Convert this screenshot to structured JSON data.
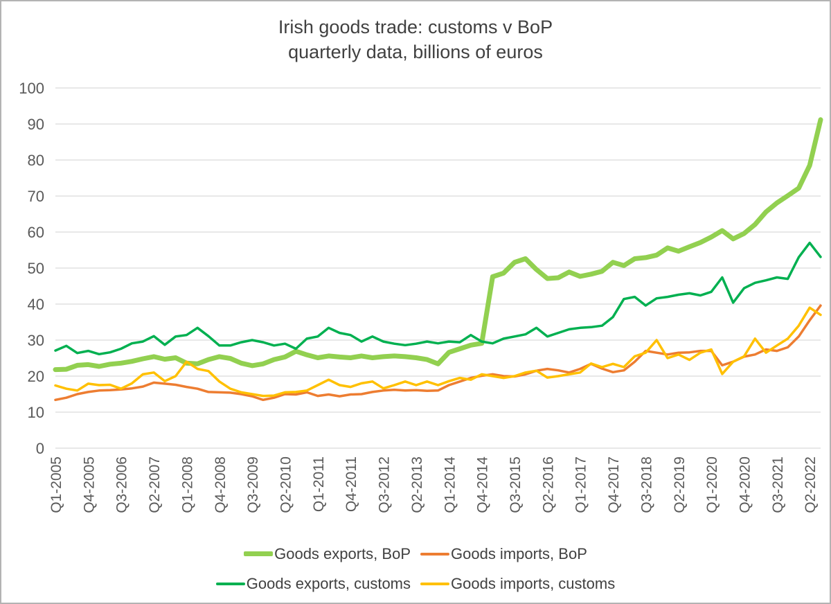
{
  "colors": {
    "axis_text": "#595959",
    "title_text": "#404040",
    "gridline": "#d9d9d9",
    "frame_border": "#b3b3b3"
  },
  "chart_data": {
    "type": "line",
    "title": "Irish goods trade: customs v BoP",
    "subtitle": "quarterly data, billions of euros",
    "ylabel": "",
    "xlabel": "",
    "ylim": [
      0,
      100
    ],
    "ytick_step": 10,
    "x_label_every": 3,
    "grid": true,
    "legend_position": "bottom",
    "categories": [
      "Q1-2005",
      "Q2-2005",
      "Q3-2005",
      "Q4-2005",
      "Q1-2006",
      "Q2-2006",
      "Q3-2006",
      "Q4-2006",
      "Q1-2007",
      "Q2-2007",
      "Q3-2007",
      "Q4-2007",
      "Q1-2008",
      "Q2-2008",
      "Q3-2008",
      "Q4-2008",
      "Q1-2009",
      "Q2-2009",
      "Q3-2009",
      "Q4-2009",
      "Q1-2010",
      "Q2-2010",
      "Q3-2010",
      "Q4-2010",
      "Q1-2011",
      "Q2-2011",
      "Q3-2011",
      "Q4-2011",
      "Q1-2012",
      "Q2-2012",
      "Q3-2012",
      "Q4-2012",
      "Q1-2013",
      "Q2-2013",
      "Q3-2013",
      "Q4-2013",
      "Q1-2014",
      "Q2-2014",
      "Q3-2014",
      "Q4-2014",
      "Q1-2015",
      "Q2-2015",
      "Q3-2015",
      "Q4-2015",
      "Q1-2016",
      "Q2-2016",
      "Q3-2016",
      "Q4-2016",
      "Q1-2017",
      "Q2-2017",
      "Q3-2017",
      "Q4-2017",
      "Q1-2018",
      "Q2-2018",
      "Q3-2018",
      "Q4-2018",
      "Q1-2019",
      "Q2-2019",
      "Q3-2019",
      "Q4-2019",
      "Q1-2020",
      "Q2-2020",
      "Q3-2020",
      "Q4-2020",
      "Q1-2021",
      "Q2-2021",
      "Q3-2021",
      "Q4-2021",
      "Q1-2022",
      "Q2-2022",
      "Q3-2022"
    ],
    "series": [
      {
        "name": "Goods exports, BoP",
        "color": "#92d050",
        "width": 7,
        "values": [
          21.8,
          21.9,
          23.0,
          23.2,
          22.7,
          23.3,
          23.6,
          24.1,
          24.8,
          25.4,
          24.7,
          25.1,
          23.6,
          23.4,
          24.6,
          25.4,
          24.9,
          23.6,
          22.9,
          23.4,
          24.6,
          25.3,
          26.9,
          25.9,
          25.1,
          25.6,
          25.3,
          25.1,
          25.6,
          25.1,
          25.4,
          25.6,
          25.4,
          25.1,
          24.6,
          23.4,
          26.6,
          27.6,
          28.6,
          29.1,
          47.6,
          48.6,
          51.6,
          52.6,
          49.6,
          47.1,
          47.3,
          48.9,
          47.7,
          48.3,
          49.1,
          51.6,
          50.7,
          52.6,
          52.9,
          53.6,
          55.6,
          54.7,
          55.9,
          57.1,
          58.6,
          60.4,
          58.1,
          59.6,
          62.1,
          65.6,
          68.1,
          70.1,
          72.2,
          78.5,
          91.2
        ]
      },
      {
        "name": "Goods imports, BoP",
        "color": "#ed7d31",
        "width": 3.5,
        "values": [
          13.4,
          14.0,
          15.0,
          15.6,
          16.0,
          16.1,
          16.3,
          16.6,
          17.1,
          18.2,
          17.9,
          17.6,
          17.0,
          16.5,
          15.6,
          15.5,
          15.4,
          15.0,
          14.4,
          13.4,
          14.0,
          15.0,
          14.9,
          15.5,
          14.5,
          14.9,
          14.4,
          14.9,
          15.0,
          15.6,
          16.0,
          16.2,
          16.0,
          16.1,
          15.9,
          16.0,
          17.5,
          18.5,
          19.5,
          20.1,
          20.5,
          20.0,
          19.9,
          20.5,
          21.5,
          22.0,
          21.6,
          21.0,
          22.0,
          23.4,
          22.1,
          21.1,
          21.6,
          24.0,
          27.0,
          26.5,
          26.0,
          26.5,
          26.6,
          27.0,
          27.0,
          23.0,
          24.0,
          25.4,
          26.0,
          27.4,
          27.0,
          28.0,
          31.0,
          35.5,
          39.6
        ]
      },
      {
        "name": "Goods exports, customs",
        "color": "#00b050",
        "width": 3.5,
        "values": [
          27.1,
          28.4,
          26.4,
          27.0,
          26.1,
          26.6,
          27.6,
          29.1,
          29.6,
          31.1,
          28.7,
          31.0,
          31.4,
          33.4,
          31.1,
          28.5,
          28.5,
          29.4,
          30.0,
          29.4,
          28.5,
          29.0,
          27.6,
          30.4,
          31.0,
          33.4,
          32.0,
          31.4,
          29.6,
          31.0,
          29.6,
          29.0,
          28.6,
          29.0,
          29.6,
          29.1,
          29.6,
          29.4,
          31.4,
          29.6,
          29.1,
          30.4,
          31.0,
          31.6,
          33.4,
          31.0,
          32.0,
          33.0,
          33.4,
          33.6,
          34.0,
          36.4,
          41.4,
          42.0,
          39.6,
          41.6,
          42.0,
          42.6,
          43.0,
          42.4,
          43.4,
          47.4,
          40.4,
          44.4,
          45.9,
          46.6,
          47.4,
          47.0,
          53.0,
          57.0,
          53.1
        ]
      },
      {
        "name": "Goods imports, customs",
        "color": "#ffc000",
        "width": 3.5,
        "values": [
          17.4,
          16.5,
          16.0,
          17.9,
          17.5,
          17.6,
          16.5,
          18.0,
          20.5,
          21.0,
          18.6,
          20.0,
          24.0,
          22.0,
          21.4,
          18.5,
          16.5,
          15.5,
          15.0,
          14.5,
          14.6,
          15.5,
          15.6,
          16.0,
          17.5,
          19.0,
          17.5,
          17.0,
          18.0,
          18.5,
          16.6,
          17.5,
          18.5,
          17.5,
          18.5,
          17.5,
          18.6,
          19.5,
          19.0,
          20.5,
          20.0,
          19.5,
          20.0,
          21.0,
          21.5,
          19.6,
          20.0,
          20.5,
          21.0,
          23.5,
          22.5,
          23.4,
          22.5,
          25.5,
          26.5,
          30.0,
          25.0,
          26.0,
          24.5,
          26.5,
          27.4,
          20.6,
          24.0,
          25.5,
          30.4,
          26.5,
          28.5,
          30.4,
          34.0,
          39.0,
          37.0
        ]
      }
    ],
    "legend_rows": [
      [
        0,
        1
      ],
      [
        2,
        3
      ]
    ]
  }
}
